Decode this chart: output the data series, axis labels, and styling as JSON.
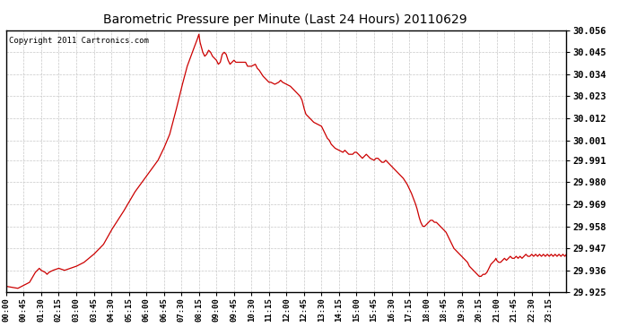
{
  "title": "Barometric Pressure per Minute (Last 24 Hours) 20110629",
  "copyright": "Copyright 2011 Cartronics.com",
  "line_color": "#cc0000",
  "bg_color": "#ffffff",
  "plot_bg_color": "#ffffff",
  "grid_color": "#c8c8c8",
  "ylim": [
    29.925,
    30.056
  ],
  "yticks": [
    29.925,
    29.936,
    29.947,
    29.958,
    29.969,
    29.98,
    29.991,
    30.001,
    30.012,
    30.023,
    30.034,
    30.045,
    30.056
  ],
  "ytick_labels": [
    "29.925",
    "29.936",
    "29.947",
    "29.958",
    "29.969",
    "29.980",
    "29.991",
    "30.001",
    "30.012",
    "30.023",
    "30.034",
    "30.045",
    "30.056"
  ],
  "xtick_labels": [
    "00:00",
    "00:45",
    "01:30",
    "02:15",
    "03:00",
    "03:45",
    "04:30",
    "05:15",
    "06:00",
    "06:45",
    "07:30",
    "08:15",
    "09:00",
    "09:45",
    "10:30",
    "11:15",
    "12:00",
    "12:45",
    "13:30",
    "14:15",
    "15:00",
    "15:45",
    "16:30",
    "17:15",
    "18:00",
    "18:45",
    "19:30",
    "20:15",
    "21:00",
    "21:45",
    "22:30",
    "23:15"
  ],
  "waypoints": [
    [
      0,
      29.928
    ],
    [
      30,
      29.927
    ],
    [
      60,
      29.93
    ],
    [
      75,
      29.935
    ],
    [
      85,
      29.937
    ],
    [
      90,
      29.936
    ],
    [
      100,
      29.935
    ],
    [
      105,
      29.934
    ],
    [
      110,
      29.935
    ],
    [
      120,
      29.936
    ],
    [
      135,
      29.937
    ],
    [
      150,
      29.936
    ],
    [
      165,
      29.937
    ],
    [
      180,
      29.938
    ],
    [
      200,
      29.94
    ],
    [
      225,
      29.944
    ],
    [
      250,
      29.949
    ],
    [
      270,
      29.956
    ],
    [
      300,
      29.965
    ],
    [
      330,
      29.975
    ],
    [
      360,
      29.983
    ],
    [
      390,
      29.991
    ],
    [
      405,
      29.997
    ],
    [
      420,
      30.004
    ],
    [
      435,
      30.015
    ],
    [
      450,
      30.027
    ],
    [
      465,
      30.038
    ],
    [
      480,
      30.046
    ],
    [
      490,
      30.051
    ],
    [
      495,
      30.054
    ],
    [
      498,
      30.05
    ],
    [
      505,
      30.045
    ],
    [
      510,
      30.043
    ],
    [
      515,
      30.044
    ],
    [
      520,
      30.046
    ],
    [
      525,
      30.045
    ],
    [
      530,
      30.043
    ],
    [
      540,
      30.041
    ],
    [
      545,
      30.039
    ],
    [
      550,
      30.04
    ],
    [
      555,
      30.044
    ],
    [
      560,
      30.045
    ],
    [
      565,
      30.044
    ],
    [
      570,
      30.041
    ],
    [
      575,
      30.039
    ],
    [
      580,
      30.04
    ],
    [
      585,
      30.041
    ],
    [
      590,
      30.04
    ],
    [
      600,
      30.04
    ],
    [
      615,
      30.04
    ],
    [
      620,
      30.038
    ],
    [
      630,
      30.038
    ],
    [
      640,
      30.039
    ],
    [
      645,
      30.037
    ],
    [
      650,
      30.036
    ],
    [
      660,
      30.033
    ],
    [
      670,
      30.031
    ],
    [
      675,
      30.03
    ],
    [
      680,
      30.03
    ],
    [
      690,
      30.029
    ],
    [
      700,
      30.03
    ],
    [
      705,
      30.031
    ],
    [
      710,
      30.03
    ],
    [
      720,
      30.029
    ],
    [
      730,
      30.028
    ],
    [
      735,
      30.027
    ],
    [
      740,
      30.026
    ],
    [
      745,
      30.025
    ],
    [
      750,
      30.024
    ],
    [
      755,
      30.023
    ],
    [
      760,
      30.021
    ],
    [
      765,
      30.017
    ],
    [
      770,
      30.014
    ],
    [
      775,
      30.013
    ],
    [
      780,
      30.012
    ],
    [
      790,
      30.01
    ],
    [
      800,
      30.009
    ],
    [
      810,
      30.008
    ],
    [
      815,
      30.006
    ],
    [
      820,
      30.004
    ],
    [
      825,
      30.002
    ],
    [
      830,
      30.001
    ],
    [
      835,
      29.999
    ],
    [
      840,
      29.998
    ],
    [
      845,
      29.997
    ],
    [
      855,
      29.996
    ],
    [
      865,
      29.995
    ],
    [
      870,
      29.996
    ],
    [
      875,
      29.995
    ],
    [
      880,
      29.994
    ],
    [
      890,
      29.994
    ],
    [
      895,
      29.995
    ],
    [
      900,
      29.995
    ],
    [
      905,
      29.994
    ],
    [
      910,
      29.993
    ],
    [
      915,
      29.992
    ],
    [
      920,
      29.993
    ],
    [
      925,
      29.994
    ],
    [
      930,
      29.993
    ],
    [
      935,
      29.992
    ],
    [
      945,
      29.991
    ],
    [
      950,
      29.992
    ],
    [
      955,
      29.992
    ],
    [
      960,
      29.991
    ],
    [
      965,
      29.99
    ],
    [
      970,
      29.99
    ],
    [
      975,
      29.991
    ],
    [
      980,
      29.99
    ],
    [
      985,
      29.989
    ],
    [
      990,
      29.988
    ],
    [
      995,
      29.987
    ],
    [
      1000,
      29.986
    ],
    [
      1005,
      29.985
    ],
    [
      1010,
      29.984
    ],
    [
      1015,
      29.983
    ],
    [
      1020,
      29.982
    ],
    [
      1030,
      29.979
    ],
    [
      1040,
      29.975
    ],
    [
      1050,
      29.97
    ],
    [
      1055,
      29.967
    ],
    [
      1060,
      29.963
    ],
    [
      1065,
      29.96
    ],
    [
      1070,
      29.958
    ],
    [
      1075,
      29.958
    ],
    [
      1080,
      29.959
    ],
    [
      1085,
      29.96
    ],
    [
      1090,
      29.961
    ],
    [
      1095,
      29.961
    ],
    [
      1100,
      29.96
    ],
    [
      1105,
      29.96
    ],
    [
      1110,
      29.959
    ],
    [
      1115,
      29.958
    ],
    [
      1120,
      29.957
    ],
    [
      1125,
      29.956
    ],
    [
      1130,
      29.955
    ],
    [
      1135,
      29.953
    ],
    [
      1140,
      29.951
    ],
    [
      1145,
      29.949
    ],
    [
      1150,
      29.947
    ],
    [
      1155,
      29.946
    ],
    [
      1160,
      29.945
    ],
    [
      1165,
      29.944
    ],
    [
      1170,
      29.943
    ],
    [
      1175,
      29.942
    ],
    [
      1180,
      29.941
    ],
    [
      1185,
      29.94
    ],
    [
      1190,
      29.938
    ],
    [
      1195,
      29.937
    ],
    [
      1200,
      29.936
    ],
    [
      1205,
      29.935
    ],
    [
      1210,
      29.934
    ],
    [
      1215,
      29.933
    ],
    [
      1220,
      29.933
    ],
    [
      1225,
      29.934
    ],
    [
      1230,
      29.934
    ],
    [
      1235,
      29.935
    ],
    [
      1240,
      29.937
    ],
    [
      1245,
      29.939
    ],
    [
      1250,
      29.94
    ],
    [
      1255,
      29.941
    ],
    [
      1258,
      29.942
    ],
    [
      1260,
      29.941
    ],
    [
      1265,
      29.94
    ],
    [
      1270,
      29.94
    ],
    [
      1275,
      29.941
    ],
    [
      1280,
      29.942
    ],
    [
      1285,
      29.941
    ],
    [
      1290,
      29.942
    ],
    [
      1295,
      29.943
    ],
    [
      1300,
      29.942
    ],
    [
      1305,
      29.942
    ],
    [
      1310,
      29.943
    ],
    [
      1315,
      29.942
    ],
    [
      1320,
      29.943
    ],
    [
      1325,
      29.942
    ],
    [
      1330,
      29.943
    ],
    [
      1335,
      29.944
    ],
    [
      1340,
      29.943
    ],
    [
      1345,
      29.943
    ],
    [
      1350,
      29.944
    ],
    [
      1355,
      29.943
    ],
    [
      1360,
      29.944
    ],
    [
      1365,
      29.943
    ],
    [
      1370,
      29.944
    ],
    [
      1375,
      29.943
    ],
    [
      1380,
      29.944
    ],
    [
      1385,
      29.943
    ],
    [
      1390,
      29.944
    ],
    [
      1395,
      29.943
    ],
    [
      1400,
      29.944
    ],
    [
      1405,
      29.943
    ],
    [
      1410,
      29.944
    ],
    [
      1415,
      29.943
    ],
    [
      1420,
      29.944
    ],
    [
      1425,
      29.943
    ],
    [
      1430,
      29.944
    ],
    [
      1435,
      29.943
    ],
    [
      1439,
      29.944
    ]
  ]
}
